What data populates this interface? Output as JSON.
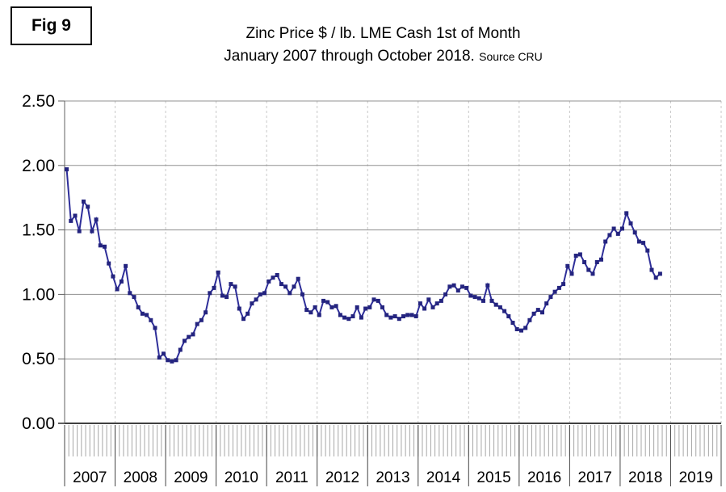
{
  "fig_label": "Fig 9",
  "header": {
    "title_line1": "Zinc Price $ / lb. LME Cash 1st of Month",
    "title_line2": "January 2007 through October 2018.",
    "source_note": "Source CRU"
  },
  "chart_data": {
    "type": "line",
    "title": "Zinc Price $ / lb. LME Cash 1st of Month",
    "subtitle": "January 2007 through October 2018. Source CRU",
    "x_unit": "month",
    "start_month": "2007-01",
    "end_month": "2018-10",
    "ylim": [
      0.0,
      2.5
    ],
    "yticks": [
      2.5,
      2.0,
      1.5,
      1.0,
      0.5,
      0.0
    ],
    "ytick_labels": [
      "2.50",
      "2.00",
      "1.50",
      "1.00",
      "0.50",
      "0.00"
    ],
    "x_axis_years": [
      "2007",
      "2008",
      "2009",
      "2010",
      "2011",
      "2012",
      "2013",
      "2014",
      "2015",
      "2016",
      "2017",
      "2018",
      "2019"
    ],
    "grid": true,
    "legend_position": "none",
    "colors": {
      "line": "#2e2e99",
      "marker": "#24247f",
      "gridline": "#909090",
      "zero_axis": "#404040",
      "year_dashed_line": "#c8c8c8",
      "month_tick": "#a6a6a6",
      "year_separator": "#444444"
    },
    "series": [
      {
        "name": "Zinc LME cash price, $/lb, 1st of month",
        "values_by_year": {
          "2007": [
            1.97,
            1.57,
            1.61,
            1.49,
            1.72,
            1.68,
            1.49,
            1.58,
            1.38,
            1.37,
            1.24,
            1.14
          ],
          "2008": [
            1.04,
            1.1,
            1.22,
            1.01,
            0.98,
            0.9,
            0.85,
            0.84,
            0.8,
            0.74,
            0.51,
            0.54
          ],
          "2009": [
            0.49,
            0.48,
            0.49,
            0.57,
            0.64,
            0.67,
            0.69,
            0.77,
            0.8,
            0.86,
            1.01,
            1.05
          ],
          "2010": [
            1.17,
            0.99,
            0.98,
            1.08,
            1.06,
            0.89,
            0.81,
            0.85,
            0.93,
            0.96,
            1.0,
            1.01
          ],
          "2011": [
            1.1,
            1.13,
            1.15,
            1.08,
            1.06,
            1.01,
            1.06,
            1.12,
            1.0,
            0.88,
            0.86,
            0.9
          ],
          "2012": [
            0.84,
            0.95,
            0.94,
            0.9,
            0.91,
            0.84,
            0.82,
            0.81,
            0.83,
            0.9,
            0.82,
            0.89
          ],
          "2013": [
            0.9,
            0.96,
            0.95,
            0.9,
            0.84,
            0.82,
            0.83,
            0.81,
            0.83,
            0.84,
            0.84,
            0.83
          ],
          "2014": [
            0.93,
            0.89,
            0.96,
            0.9,
            0.93,
            0.95,
            1.0,
            1.06,
            1.07,
            1.03,
            1.06,
            1.05
          ],
          "2015": [
            0.99,
            0.98,
            0.97,
            0.95,
            1.07,
            0.95,
            0.92,
            0.9,
            0.87,
            0.83,
            0.78,
            0.73
          ],
          "2016": [
            0.72,
            0.74,
            0.8,
            0.85,
            0.88,
            0.86,
            0.93,
            0.98,
            1.02,
            1.05,
            1.08,
            1.22
          ],
          "2017": [
            1.16,
            1.3,
            1.31,
            1.25,
            1.19,
            1.16,
            1.25,
            1.27,
            1.41,
            1.46,
            1.51,
            1.47
          ],
          "2018": [
            1.51,
            1.63,
            1.55,
            1.48,
            1.41,
            1.4,
            1.34,
            1.19,
            1.13,
            1.16
          ]
        }
      }
    ]
  }
}
